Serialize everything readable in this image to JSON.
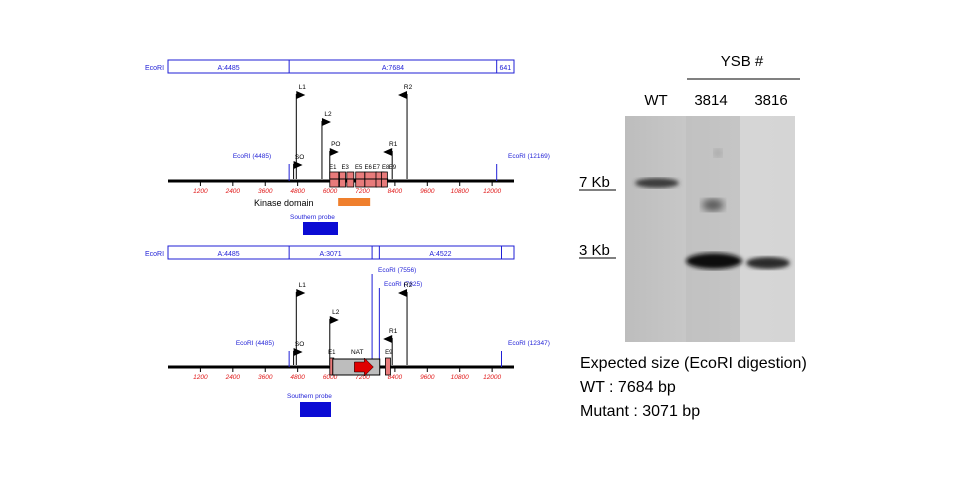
{
  "colors": {
    "blue": "#1f1fd6",
    "ruler_label": "#e01818",
    "exon_fill": "#e87b7b",
    "kinase_bar": "#ef7f2d",
    "probe_fill": "#0b0bd4",
    "nat_arrow": "#e00000",
    "nat_box": "#bdbdbd"
  },
  "wt_map": {
    "fragments": [
      {
        "label": "A:4485",
        "from": 0,
        "to": 4485
      },
      {
        "label": "A:7684",
        "from": 4485,
        "to": 12169
      },
      {
        "label": "641",
        "from": 12169,
        "to": 12810
      }
    ],
    "enzyme_label": "EcoRI",
    "ruler_ticks": [
      "1200",
      "2400",
      "3600",
      "4800",
      "6000",
      "7200",
      "8400",
      "9600",
      "10800",
      "12000"
    ],
    "sites": [
      {
        "label": "EcoRI (4485)",
        "bp": 4485
      },
      {
        "label": "EcoRI (12169)",
        "bp": 12169
      }
    ],
    "primers": [
      {
        "label": "L1",
        "bp": 4750,
        "level": 1,
        "dir": "right"
      },
      {
        "label": "L2",
        "bp": 5700,
        "level": 2,
        "dir": "right"
      },
      {
        "label": "PO",
        "bp": 5990,
        "level": 3,
        "dir": "right"
      },
      {
        "label": "SO",
        "bp": 4650,
        "level": 4,
        "dir": "right"
      },
      {
        "label": "R2",
        "bp": 8850,
        "level": 1,
        "dir": "left"
      },
      {
        "label": "R1",
        "bp": 8300,
        "level": 3,
        "dir": "left"
      }
    ],
    "exon_labels": [
      "E1",
      "E3",
      "E5",
      "E6",
      "E7",
      "E8",
      "E9"
    ],
    "kinase_label": "Kinase domain",
    "probe_label": "Southern probe"
  },
  "mut_map": {
    "fragments": [
      {
        "label": "A:4485",
        "from": 0,
        "to": 4485
      },
      {
        "label": "A:3071",
        "from": 4485,
        "to": 7556
      },
      {
        "label": "",
        "from": 7556,
        "to": 7825
      },
      {
        "label": "A:4522",
        "from": 7825,
        "to": 12347
      },
      {
        "label": "",
        "from": 12347,
        "to": 12810
      }
    ],
    "enzyme_label": "EcoRI",
    "ruler_ticks": [
      "1200",
      "2400",
      "3600",
      "4800",
      "6000",
      "7200",
      "8400",
      "9600",
      "10800",
      "12000"
    ],
    "sites": [
      {
        "label": "EcoRI (4485)",
        "bp": 4485
      },
      {
        "label": "EcoRI (7556)",
        "bp": 7556
      },
      {
        "label": "EcoRI (7825)",
        "bp": 7825
      },
      {
        "label": "EcoRI (12347)",
        "bp": 12347
      }
    ],
    "primers": [
      {
        "label": "L1",
        "bp": 4750,
        "level": 1,
        "dir": "right"
      },
      {
        "label": "L2",
        "bp": 5990,
        "level": 2,
        "dir": "right"
      },
      {
        "label": "R2",
        "bp": 8850,
        "level": 1,
        "dir": "left"
      },
      {
        "label": "R1",
        "bp": 8300,
        "level": 3,
        "dir": "left"
      },
      {
        "label": "SO",
        "bp": 4650,
        "level": 4,
        "dir": "right"
      }
    ],
    "exon_labels": [
      "E1",
      "E9"
    ],
    "nat_label": "NAT",
    "probe_label": "Southern probe"
  },
  "blot": {
    "group_label": "YSB #",
    "lanes": [
      "WT",
      "3814",
      "3816"
    ],
    "size_markers": [
      "7 Kb",
      "3 Kb"
    ],
    "caption": [
      "Expected size (EcoRI digestion)",
      "WT : 7684 bp",
      "Mutant : 3071 bp"
    ]
  }
}
